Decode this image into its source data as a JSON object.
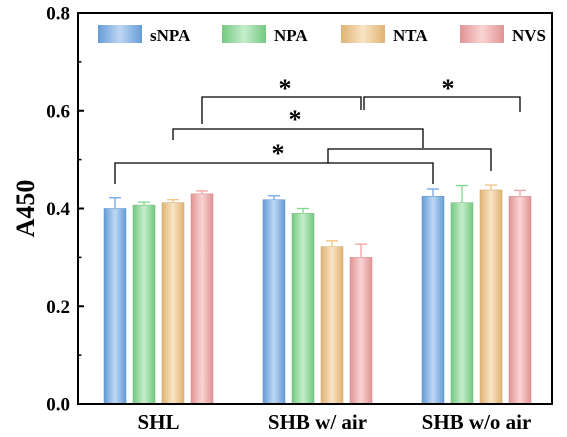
{
  "chart_data": {
    "type": "bar",
    "ylabel": "A450",
    "ylim": [
      0,
      0.8
    ],
    "yticks": [
      "0.0",
      "0.2",
      "0.4",
      "0.6",
      "0.8"
    ],
    "categories": [
      "SHL",
      "SHB w/ air",
      "SHB w/o air"
    ],
    "series": [
      {
        "name": "sNPA",
        "color": "#6fa8e8",
        "values": [
          0.4,
          0.418,
          0.425
        ],
        "errors": [
          0.022,
          0.008,
          0.015
        ]
      },
      {
        "name": "NPA",
        "color": "#7fd98c",
        "values": [
          0.407,
          0.39,
          0.412
        ],
        "errors": [
          0.006,
          0.01,
          0.035
        ]
      },
      {
        "name": "NTA",
        "color": "#f2c37d",
        "values": [
          0.412,
          0.322,
          0.438
        ],
        "errors": [
          0.006,
          0.012,
          0.01
        ]
      },
      {
        "name": "NVS",
        "color": "#f4a0a0",
        "values": [
          0.43,
          0.3,
          0.425
        ],
        "errors": [
          0.006,
          0.027,
          0.012
        ]
      }
    ],
    "legend_position": "top",
    "grid": false,
    "significance_marker": "*"
  }
}
